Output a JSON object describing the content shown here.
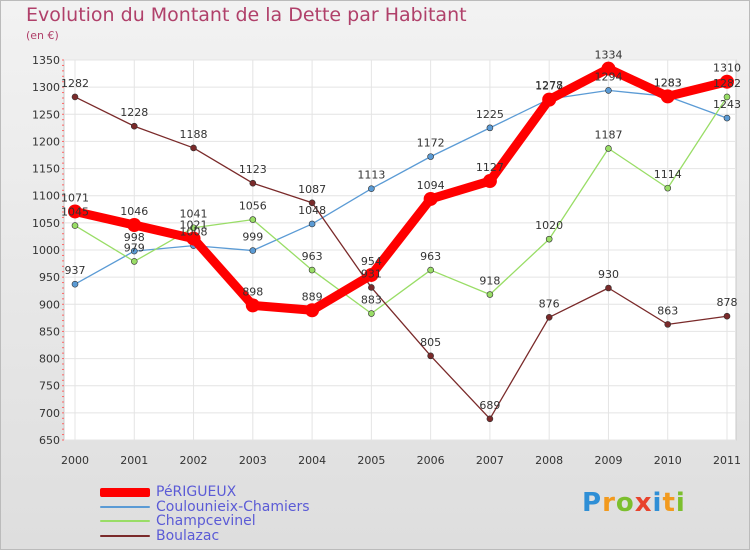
{
  "chart_data": {
    "type": "line",
    "title": "Evolution du Montant de la Dette par Habitant",
    "subtitle": "(en €)",
    "x": [
      "2000",
      "2001",
      "2002",
      "2003",
      "2004",
      "2005",
      "2006",
      "2007",
      "2008",
      "2009",
      "2010",
      "2011"
    ],
    "ylim": [
      650,
      1350
    ],
    "yticks": [
      650,
      700,
      750,
      800,
      850,
      900,
      950,
      1000,
      1050,
      1100,
      1150,
      1200,
      1250,
      1300,
      1350
    ],
    "grid": true,
    "legend_position": "bottom-left",
    "series": [
      {
        "name": "PéRIGUEUX",
        "color": "#ff0000",
        "values": [
          1071,
          1046,
          1021,
          898,
          889,
          954,
          1094,
          1127,
          1277,
          1334,
          1283,
          1310
        ]
      },
      {
        "name": "Coulounieix-Chamiers",
        "color": "#5b9bd5",
        "values": [
          937,
          998,
          1008,
          999,
          1048,
          1113,
          1172,
          1225,
          1278,
          1294,
          1283,
          1243
        ]
      },
      {
        "name": "Champcevinel",
        "color": "#99dd66",
        "values": [
          1045,
          979,
          1041,
          1056,
          963,
          883,
          963,
          918,
          1020,
          1187,
          1114,
          1282
        ]
      },
      {
        "name": "Boulazac",
        "color": "#7a2a2a",
        "values": [
          1282,
          1228,
          1188,
          1123,
          1087,
          931,
          805,
          689,
          876,
          930,
          863,
          878
        ]
      }
    ]
  },
  "logo": {
    "text": "Proxiti"
  }
}
